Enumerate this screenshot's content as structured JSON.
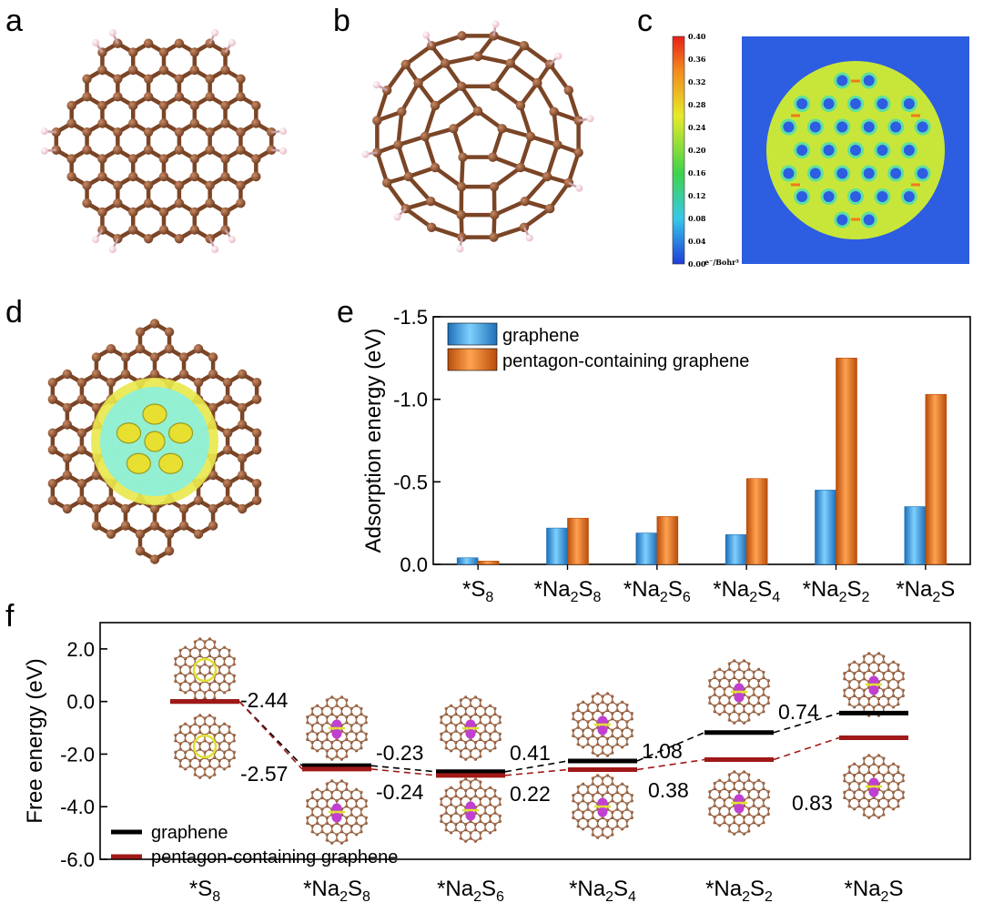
{
  "panels": {
    "a": "a",
    "b": "b",
    "c": "c",
    "d": "d",
    "e": "e",
    "f": "f"
  },
  "colorbar": {
    "ticks": [
      "0.40",
      "0.36",
      "0.32",
      "0.28",
      "0.24",
      "0.20",
      "0.16",
      "0.12",
      "0.08",
      "0.04",
      "0.00"
    ],
    "unit": "e⁻/Bohr³"
  },
  "molecule_icons": {
    "panel_a": "graphene-flake-icon",
    "panel_b": "pentagon-graphene-flake-icon",
    "panel_c": "electron-density-map",
    "panel_d": "charge-density-isosurface-icon"
  },
  "colors": {
    "graphene_bar": "#3d9be0",
    "pentagon_bar": "#f07a1a",
    "graphene_line": "#000000",
    "pentagon_line": "#a01818"
  },
  "chart_data": [
    {
      "panel": "e",
      "type": "bar",
      "ylabel": "Adsorption energy (eV)",
      "ylim": [
        0,
        -1.5
      ],
      "y_inverted": true,
      "yticks": [
        "-1.5",
        "-1.0",
        "-0.5",
        "0.0"
      ],
      "categories": [
        {
          "pre": "*S",
          "sub": "8",
          "post": ""
        },
        {
          "pre": "*Na",
          "sub": "2",
          "mid": "S",
          "sub2": "8"
        },
        {
          "pre": "*Na",
          "sub": "2",
          "mid": "S",
          "sub2": "6"
        },
        {
          "pre": "*Na",
          "sub": "2",
          "mid": "S",
          "sub2": "4"
        },
        {
          "pre": "*Na",
          "sub": "2",
          "mid": "S",
          "sub2": "2"
        },
        {
          "pre": "*Na",
          "sub": "2",
          "mid": "S",
          "sub2": ""
        }
      ],
      "series": [
        {
          "name": "graphene",
          "values": [
            -0.04,
            -0.22,
            -0.19,
            -0.18,
            -0.45,
            -0.35
          ]
        },
        {
          "name": "pentagon-containing graphene",
          "values": [
            -0.02,
            -0.28,
            -0.29,
            -0.52,
            -1.25,
            -1.03
          ]
        }
      ],
      "legend": "top-left"
    },
    {
      "panel": "f",
      "type": "line",
      "ylabel": "Free energy (eV)",
      "ylim": [
        -6.0,
        3.0
      ],
      "yticks": [
        "2.0",
        "0.0",
        "-2.0",
        "-4.0",
        "-6.0"
      ],
      "categories": [
        {
          "pre": "*S",
          "sub": "8",
          "post": ""
        },
        {
          "pre": "*Na",
          "sub": "2",
          "mid": "S",
          "sub2": "8"
        },
        {
          "pre": "*Na",
          "sub": "2",
          "mid": "S",
          "sub2": "6"
        },
        {
          "pre": "*Na",
          "sub": "2",
          "mid": "S",
          "sub2": "4"
        },
        {
          "pre": "*Na",
          "sub": "2",
          "mid": "S",
          "sub2": "2"
        },
        {
          "pre": "*Na",
          "sub": "2",
          "mid": "S",
          "sub2": ""
        }
      ],
      "series": [
        {
          "name": "graphene",
          "values": [
            0.0,
            -2.44,
            -2.67,
            -2.26,
            -1.18,
            -0.44
          ],
          "step_labels": [
            "-2.44",
            "-0.23",
            "0.41",
            "1.08",
            "0.74"
          ]
        },
        {
          "name": "pentagon-containing graphene",
          "values": [
            0.0,
            -2.57,
            -2.81,
            -2.59,
            -2.21,
            -1.38
          ],
          "step_labels": [
            "-2.57",
            "-0.24",
            "0.22",
            "0.38",
            "0.83"
          ]
        }
      ],
      "legend": "bottom-left"
    }
  ]
}
